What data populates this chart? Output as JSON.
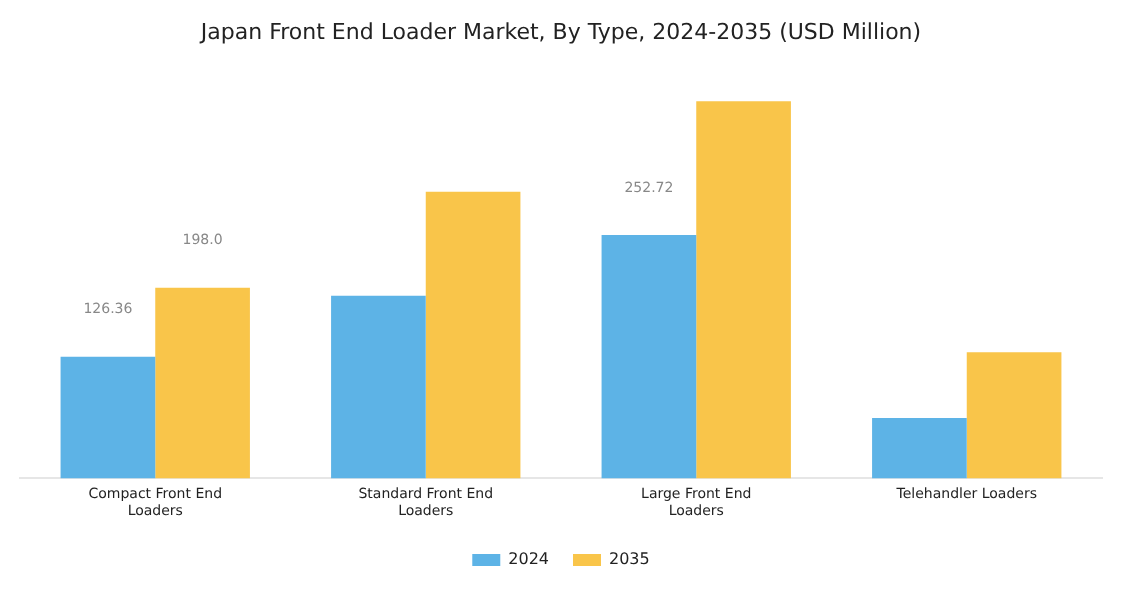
{
  "chart_data": {
    "type": "bar",
    "title": "Japan Front End Loader Market, By Type, 2024-2035 (USD Million)",
    "categories": [
      "Compact Front End Loaders",
      "Standard Front End Loaders",
      "Large Front End Loaders",
      "Telehandler Loaders"
    ],
    "series": [
      {
        "name": "2024",
        "color": "#5db3e6",
        "values": [
          126.36,
          189.5,
          252.72,
          62.6
        ],
        "value_labels": [
          "126.36",
          null,
          "252.72",
          null
        ]
      },
      {
        "name": "2035",
        "color": "#f9c54a",
        "values": [
          198.0,
          297.5,
          391.5,
          131
        ],
        "value_labels": [
          "198.0",
          null,
          null,
          null
        ]
      }
    ],
    "legend": "bottom",
    "grid": false,
    "tick_labels": "x"
  }
}
